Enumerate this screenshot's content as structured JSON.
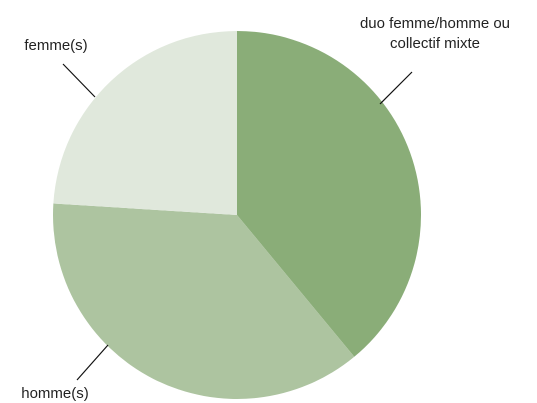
{
  "chart_data": {
    "type": "pie",
    "categories": [
      "duo femme/homme ou collectif mixte",
      "homme(s)",
      "femme(s)"
    ],
    "values": [
      39,
      37,
      24
    ],
    "colors": [
      "#8aad78",
      "#adc4a0",
      "#e0e8dc"
    ]
  }
}
